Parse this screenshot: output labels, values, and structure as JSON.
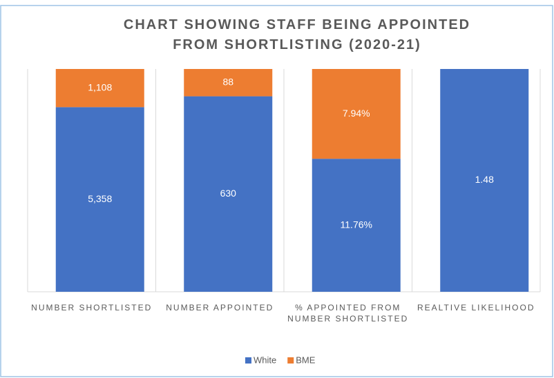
{
  "chart_data": {
    "type": "bar",
    "stacking": "percent",
    "title": "CHART SHOWING STAFF BEING APPOINTED FROM SHORTLISTING (2020-21)",
    "categories": [
      "NUMBER SHORTLISTED",
      "NUMBER APPOINTED",
      "% APPOINTED FROM NUMBER SHORTLISTED",
      "REALTIVE LIKELIHOOD"
    ],
    "series": [
      {
        "name": "White",
        "color": "#4472c4",
        "values": [
          5358,
          630,
          11.76,
          1.48
        ],
        "value_labels": [
          "5,358",
          "630",
          "11.76%",
          "1.48"
        ]
      },
      {
        "name": "BME",
        "color": "#ed7d31",
        "values": [
          1108,
          88,
          7.94,
          null
        ],
        "value_labels": [
          "1,108",
          "88",
          "7.94%",
          null
        ]
      }
    ],
    "grid": true,
    "legend": "bottom"
  }
}
